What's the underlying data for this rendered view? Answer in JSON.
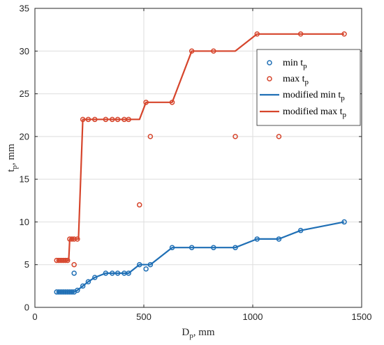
{
  "chart_data": {
    "type": "scatter",
    "xlabel": "D",
    "xlabel_sub": "p",
    "xlabel_unit": ", mm",
    "ylabel": "t",
    "ylabel_sub": "p",
    "ylabel_unit": ", mm",
    "xlim": [
      0,
      1500
    ],
    "ylim": [
      0,
      35
    ],
    "xticks": [
      0,
      500,
      1000,
      1500
    ],
    "yticks": [
      0,
      5,
      10,
      15,
      20,
      25,
      30,
      35
    ],
    "grid": true,
    "legend_position": "top-right",
    "series": [
      {
        "name": "min t",
        "name_sub": "p",
        "kind": "markers",
        "color": "#1f6fb5",
        "points": [
          [
            100,
            1.8
          ],
          [
            110,
            1.8
          ],
          [
            120,
            1.8
          ],
          [
            130,
            1.8
          ],
          [
            140,
            1.8
          ],
          [
            150,
            1.8
          ],
          [
            160,
            1.8
          ],
          [
            170,
            1.8
          ],
          [
            180,
            1.8
          ],
          [
            195,
            2.0
          ],
          [
            220,
            2.5
          ],
          [
            245,
            3.0
          ],
          [
            275,
            3.5
          ],
          [
            325,
            4.0
          ],
          [
            355,
            4.0
          ],
          [
            380,
            4.0
          ],
          [
            410,
            4.0
          ],
          [
            430,
            4.0
          ],
          [
            480,
            5.0
          ],
          [
            510,
            4.5
          ],
          [
            530,
            5.0
          ],
          [
            630,
            7.0
          ],
          [
            720,
            7.0
          ],
          [
            820,
            7.0
          ],
          [
            920,
            7.0
          ],
          [
            1020,
            8.0
          ],
          [
            1120,
            8.0
          ],
          [
            1220,
            9.0
          ],
          [
            1420,
            10.0
          ],
          [
            180,
            4.0
          ]
        ]
      },
      {
        "name": "max t",
        "name_sub": "p",
        "kind": "markers",
        "color": "#d6452c",
        "points": [
          [
            100,
            5.5
          ],
          [
            110,
            5.5
          ],
          [
            120,
            5.5
          ],
          [
            130,
            5.5
          ],
          [
            140,
            5.5
          ],
          [
            150,
            5.5
          ],
          [
            160,
            8.0
          ],
          [
            170,
            8.0
          ],
          [
            180,
            8.0
          ],
          [
            195,
            8.0
          ],
          [
            220,
            22.0
          ],
          [
            245,
            22.0
          ],
          [
            275,
            22.0
          ],
          [
            325,
            22.0
          ],
          [
            355,
            22.0
          ],
          [
            380,
            22.0
          ],
          [
            410,
            22.0
          ],
          [
            430,
            22.0
          ],
          [
            480,
            12.0
          ],
          [
            510,
            24.0
          ],
          [
            530,
            20.0
          ],
          [
            630,
            24.0
          ],
          [
            720,
            30.0
          ],
          [
            820,
            30.0
          ],
          [
            920,
            20.0
          ],
          [
            1020,
            32.0
          ],
          [
            1120,
            20.0
          ],
          [
            1220,
            32.0
          ],
          [
            1420,
            32.0
          ],
          [
            180,
            5.0
          ]
        ]
      },
      {
        "name": "modified min t",
        "name_sub": "p",
        "kind": "line",
        "color": "#1f6fb5",
        "points": [
          [
            100,
            1.8
          ],
          [
            180,
            1.8
          ],
          [
            195,
            2.0
          ],
          [
            220,
            2.5
          ],
          [
            245,
            3.0
          ],
          [
            275,
            3.5
          ],
          [
            325,
            4.0
          ],
          [
            430,
            4.0
          ],
          [
            480,
            5.0
          ],
          [
            510,
            5.0
          ],
          [
            530,
            5.0
          ],
          [
            630,
            7.0
          ],
          [
            920,
            7.0
          ],
          [
            1020,
            8.0
          ],
          [
            1120,
            8.0
          ],
          [
            1220,
            9.0
          ],
          [
            1420,
            10.0
          ]
        ]
      },
      {
        "name": "modified max t",
        "name_sub": "p",
        "kind": "line",
        "color": "#d6452c",
        "points": [
          [
            100,
            5.5
          ],
          [
            155,
            5.5
          ],
          [
            160,
            8.0
          ],
          [
            200,
            8.0
          ],
          [
            220,
            22.0
          ],
          [
            480,
            22.0
          ],
          [
            510,
            24.0
          ],
          [
            630,
            24.0
          ],
          [
            720,
            30.0
          ],
          [
            920,
            30.0
          ],
          [
            1020,
            32.0
          ],
          [
            1420,
            32.0
          ]
        ]
      }
    ]
  }
}
